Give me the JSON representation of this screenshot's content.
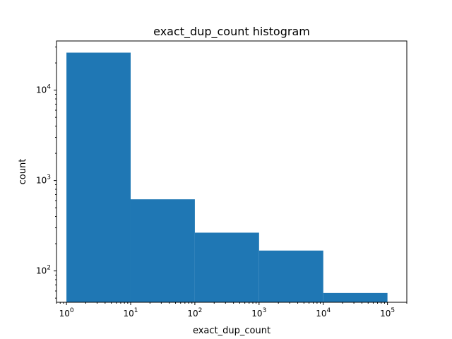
{
  "chart_data": {
    "type": "bar",
    "title": "exact_dup_count histogram",
    "xlabel": "exact_dup_count",
    "ylabel": "count",
    "xscale": "log",
    "yscale": "log",
    "xlim": [
      0.7,
      200000
    ],
    "ylim": [
      45,
      35000
    ],
    "grid": false,
    "bins": [
      {
        "x0": 1,
        "x1": 10,
        "count": 26000
      },
      {
        "x0": 10,
        "x1": 100,
        "count": 620
      },
      {
        "x0": 100,
        "x1": 1000,
        "count": 265
      },
      {
        "x0": 1000,
        "x1": 10000,
        "count": 168
      },
      {
        "x0": 10000,
        "x1": 100000,
        "count": 57
      }
    ],
    "x_ticks": [
      {
        "value": 1,
        "base": "10",
        "exp": "0"
      },
      {
        "value": 10,
        "base": "10",
        "exp": "1"
      },
      {
        "value": 100,
        "base": "10",
        "exp": "2"
      },
      {
        "value": 1000,
        "base": "10",
        "exp": "3"
      },
      {
        "value": 10000,
        "base": "10",
        "exp": "4"
      },
      {
        "value": 100000,
        "base": "10",
        "exp": "5"
      }
    ],
    "y_ticks": [
      {
        "value": 100,
        "base": "10",
        "exp": "2"
      },
      {
        "value": 1000,
        "base": "10",
        "exp": "3"
      },
      {
        "value": 10000,
        "base": "10",
        "exp": "4"
      }
    ]
  }
}
